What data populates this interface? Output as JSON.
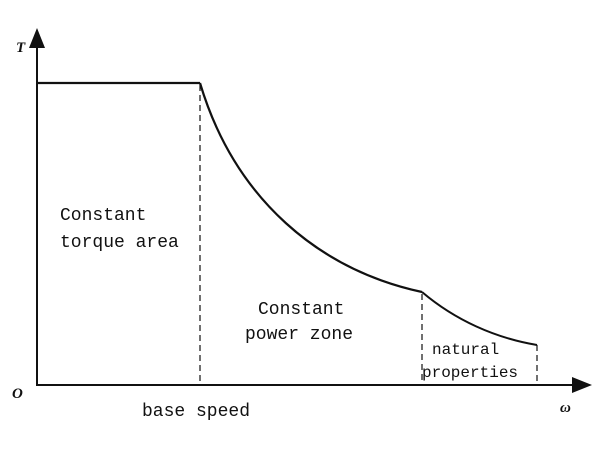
{
  "diagram": {
    "y_axis_label": "T",
    "x_axis_label": "ω",
    "origin_label": "O",
    "regions": [
      {
        "lines": [
          "Constant",
          "torque area"
        ]
      },
      {
        "lines": [
          "Constant",
          "power zone"
        ]
      },
      {
        "lines": [
          "natural",
          "properties"
        ]
      }
    ],
    "x_marker_label": "base speed"
  }
}
